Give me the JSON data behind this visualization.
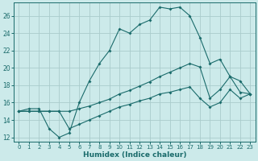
{
  "xlabel": "Humidex (Indice chaleur)",
  "bg_color": "#cceaea",
  "grid_color": "#aacccc",
  "line_color": "#1a6b6b",
  "xlim": [
    -0.5,
    23.5
  ],
  "ylim": [
    11.5,
    27.5
  ],
  "yticks": [
    12,
    14,
    16,
    18,
    20,
    22,
    24,
    26
  ],
  "xticks": [
    0,
    1,
    2,
    3,
    4,
    5,
    6,
    7,
    8,
    9,
    10,
    11,
    12,
    13,
    14,
    15,
    16,
    17,
    18,
    19,
    20,
    21,
    22,
    23
  ],
  "line1_x": [
    0,
    1,
    2,
    3,
    4,
    5,
    6,
    7,
    8,
    9,
    10,
    11,
    12,
    13,
    14,
    15,
    16,
    17,
    18,
    19,
    20,
    21,
    22,
    23
  ],
  "line1_y": [
    15.0,
    15.3,
    15.3,
    13.0,
    12.0,
    12.5,
    16.0,
    18.5,
    20.5,
    22.0,
    24.5,
    24.0,
    25.0,
    25.5,
    27.0,
    26.8,
    27.0,
    26.0,
    23.5,
    20.5,
    21.0,
    19.0,
    18.5,
    17.0
  ],
  "line2_x": [
    0,
    1,
    2,
    3,
    4,
    5,
    6,
    7,
    8,
    9,
    10,
    11,
    12,
    13,
    14,
    15,
    16,
    17,
    18,
    19,
    20,
    21,
    22,
    23
  ],
  "line2_y": [
    15.0,
    15.0,
    15.0,
    15.0,
    15.0,
    15.0,
    15.3,
    15.6,
    16.0,
    16.4,
    17.0,
    17.4,
    17.9,
    18.4,
    19.0,
    19.5,
    20.0,
    20.5,
    20.1,
    16.5,
    17.5,
    19.0,
    17.2,
    17.0
  ],
  "line3_x": [
    0,
    1,
    2,
    3,
    4,
    5,
    6,
    7,
    8,
    9,
    10,
    11,
    12,
    13,
    14,
    15,
    16,
    17,
    18,
    19,
    20,
    21,
    22,
    23
  ],
  "line3_y": [
    15.0,
    15.0,
    15.0,
    15.0,
    15.0,
    13.0,
    13.5,
    14.0,
    14.5,
    15.0,
    15.5,
    15.8,
    16.2,
    16.5,
    17.0,
    17.2,
    17.5,
    17.8,
    16.5,
    15.5,
    16.0,
    17.5,
    16.5,
    17.0
  ]
}
